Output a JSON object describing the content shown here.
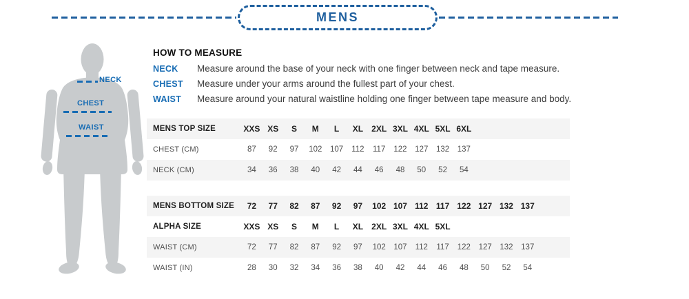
{
  "header": {
    "title": "MENS"
  },
  "colors": {
    "accent_blue": "#1e5f9e",
    "label_blue": "#176cb4",
    "row_shade": "#f4f4f4",
    "silhouette_gray": "#c8cbcd"
  },
  "figure": {
    "neck_label": "NECK",
    "chest_label": "CHEST",
    "waist_label": "WAIST"
  },
  "how_to_measure": {
    "title": "HOW TO MEASURE",
    "rows": [
      {
        "label": "NECK",
        "text": "Measure around the base of your neck with one finger between neck and tape measure."
      },
      {
        "label": "CHEST",
        "text": "Measure under your arms around the fullest part of your chest."
      },
      {
        "label": "WAIST",
        "text": "Measure around your natural waistline holding one finger between tape measure and body."
      }
    ]
  },
  "top_table": {
    "rows": [
      {
        "label": "MENS TOP SIZE",
        "bold": true,
        "shaded": true,
        "values": [
          "XXS",
          "XS",
          "S",
          "M",
          "L",
          "XL",
          "2XL",
          "3XL",
          "4XL",
          "5XL",
          "6XL"
        ]
      },
      {
        "label": "CHEST (CM)",
        "bold": false,
        "shaded": false,
        "values": [
          "87",
          "92",
          "97",
          "102",
          "107",
          "112",
          "117",
          "122",
          "127",
          "132",
          "137"
        ]
      },
      {
        "label": "NECK (CM)",
        "bold": false,
        "shaded": true,
        "values": [
          "34",
          "36",
          "38",
          "40",
          "42",
          "44",
          "46",
          "48",
          "50",
          "52",
          "54"
        ]
      }
    ]
  },
  "bottom_table": {
    "rows": [
      {
        "label": "MENS BOTTOM SIZE",
        "bold": true,
        "shaded": true,
        "values": [
          "72",
          "77",
          "82",
          "87",
          "92",
          "97",
          "102",
          "107",
          "112",
          "117",
          "122",
          "127",
          "132",
          "137"
        ]
      },
      {
        "label": "ALPHA SIZE",
        "bold": true,
        "shaded": false,
        "values": [
          "XXS",
          "XS",
          "S",
          "M",
          "L",
          "XL",
          "2XL",
          "3XL",
          "4XL",
          "5XL"
        ]
      },
      {
        "label": "WAIST (CM)",
        "bold": false,
        "shaded": true,
        "values": [
          "72",
          "77",
          "82",
          "87",
          "92",
          "97",
          "102",
          "107",
          "112",
          "117",
          "122",
          "127",
          "132",
          "137"
        ]
      },
      {
        "label": "WAIST (IN)",
        "bold": false,
        "shaded": false,
        "values": [
          "28",
          "30",
          "32",
          "34",
          "36",
          "38",
          "40",
          "42",
          "44",
          "46",
          "48",
          "50",
          "52",
          "54"
        ]
      }
    ]
  }
}
